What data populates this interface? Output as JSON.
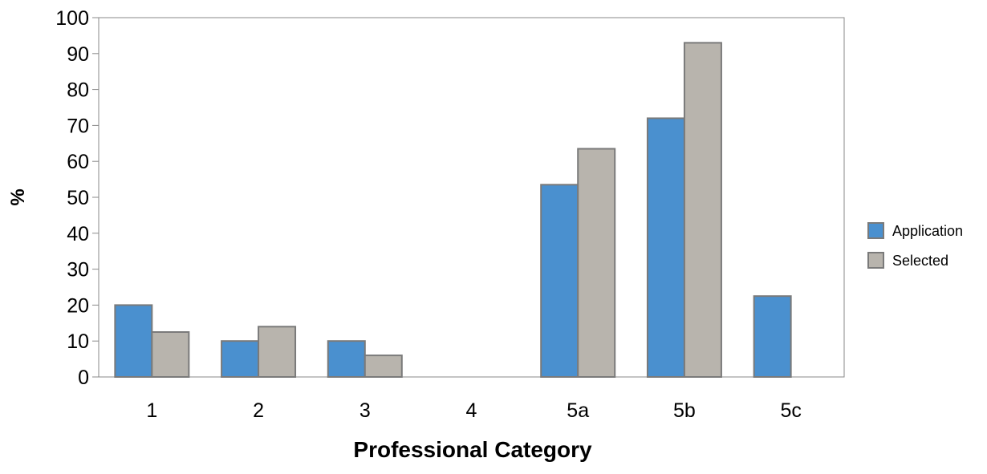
{
  "chart_data": {
    "type": "bar",
    "title": "",
    "xlabel": "Professional Category",
    "ylabel": "%",
    "ylim": [
      0,
      100
    ],
    "yticks": [
      0,
      10,
      20,
      30,
      40,
      50,
      60,
      70,
      80,
      90,
      100
    ],
    "categories": [
      "1",
      "2",
      "3",
      "4",
      "5a",
      "5b",
      "5c"
    ],
    "series": [
      {
        "name": "Application",
        "color": "#4a90cf",
        "values": [
          20,
          10,
          10,
          0,
          53.5,
          72,
          22.5
        ]
      },
      {
        "name": "Selected",
        "color": "#b8b4ad",
        "values": [
          12.5,
          14,
          6,
          0,
          63.5,
          93,
          0
        ]
      }
    ],
    "grid": false,
    "legend_position": "right",
    "colors": {
      "bar_stroke": "#7a7a7a",
      "axis": "#888888",
      "text": "#000000"
    }
  }
}
